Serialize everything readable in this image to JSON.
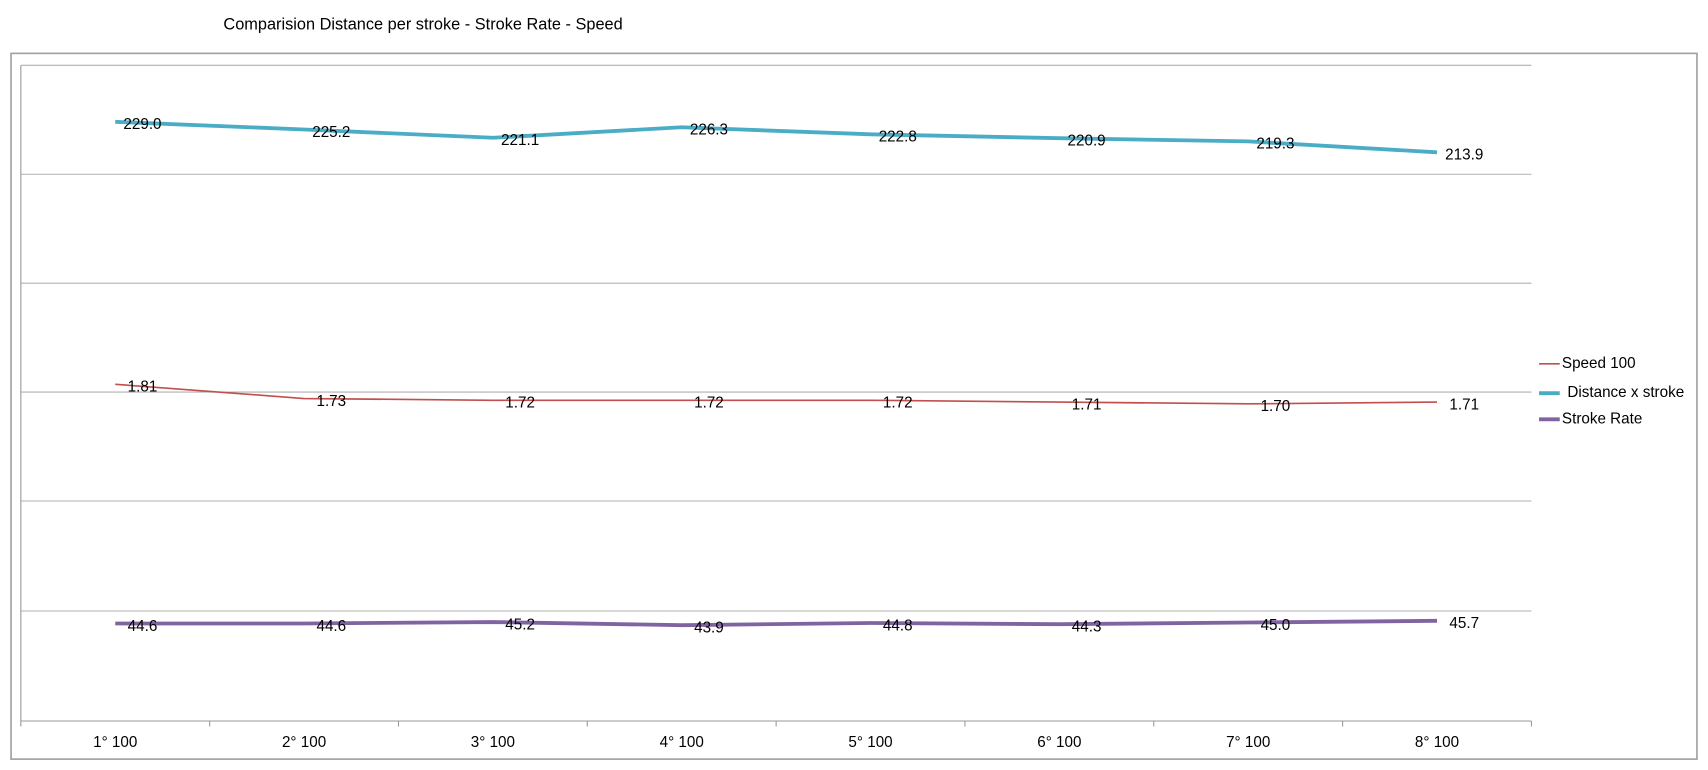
{
  "chart_data": {
    "type": "line",
    "title": "Comparision  Distance per stroke - Stroke Rate - Speed",
    "categories": [
      "1° 100",
      "2° 100",
      "3° 100",
      "4° 100",
      "5° 100",
      "6° 100",
      "7° 100",
      "8° 100"
    ],
    "legend": "right",
    "series": [
      {
        "name": "Speed 100",
        "color": "#c0504d",
        "ylim": [
          -0.08,
          3.6
        ],
        "values": [
          1.81,
          1.73,
          1.72,
          1.72,
          1.72,
          1.71,
          1.7,
          1.71
        ],
        "value_labels": [
          "1.81",
          "1.73",
          "1.72",
          "1.72",
          "1.72",
          "1.71",
          "1.70",
          "1.71"
        ]
      },
      {
        "name": "Distance x stroke",
        "color": "#4bacc6",
        "ylim": [
          -68,
          257
        ],
        "values": [
          229.0,
          225.2,
          221.1,
          226.3,
          222.8,
          220.9,
          219.3,
          213.9
        ],
        "value_labels": [
          "229.0",
          "225.2",
          "221.1",
          "226.3",
          "222.8",
          "220.9",
          "219.3",
          "213.9"
        ]
      },
      {
        "name": "Stroke Rate",
        "color": "#8064a2",
        "ylim": [
          4,
          277
        ],
        "values": [
          44.6,
          44.6,
          45.2,
          43.9,
          44.8,
          44.3,
          45.0,
          45.7
        ],
        "value_labels": [
          "44.6",
          "44.6",
          "45.2",
          "43.9",
          "44.8",
          "44.3",
          "45.0",
          "45.7"
        ]
      }
    ]
  }
}
